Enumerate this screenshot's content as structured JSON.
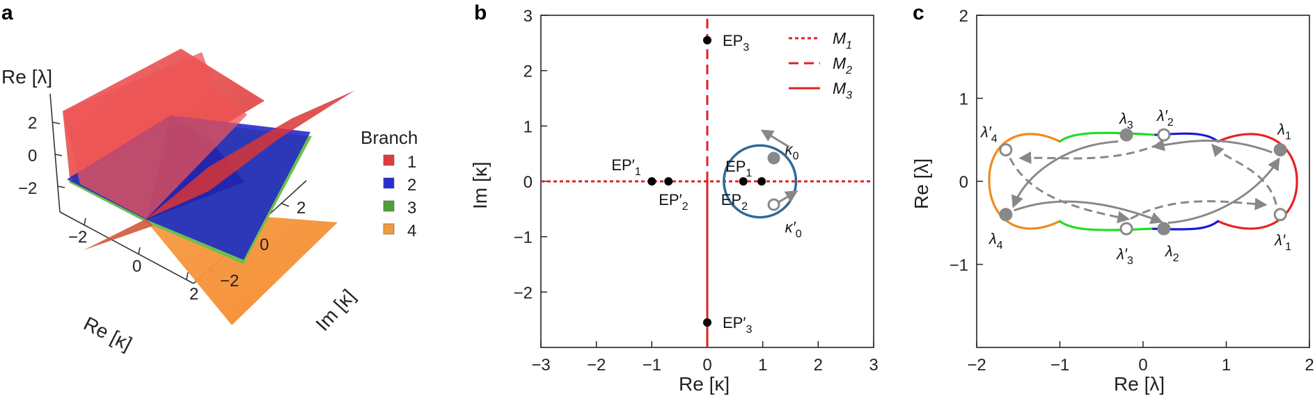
{
  "figure": {
    "panel_labels": [
      "a",
      "b",
      "c"
    ]
  },
  "chart_data": [
    {
      "panel": "a",
      "type": "surface",
      "axes": {
        "x": {
          "label": "Re [κ]",
          "ticks": [
            "−2",
            "0",
            "2"
          ],
          "range": [
            -3,
            3
          ]
        },
        "y": {
          "label": "Im [κ]",
          "ticks": [
            "−2",
            "0",
            "2"
          ],
          "range": [
            -3,
            3
          ]
        },
        "z": {
          "label": "Re [λ]",
          "ticks": [
            "2",
            "0",
            "−2"
          ],
          "range": [
            -3,
            3
          ]
        }
      },
      "legend": {
        "title": "Branch",
        "placement": "right",
        "entries": [
          {
            "label": "1",
            "color": "#e03a3a"
          },
          {
            "label": "2",
            "color": "#2b2bd6"
          },
          {
            "label": "3",
            "color": "#4f9e3a"
          },
          {
            "label": "4",
            "color": "#f39a3c"
          }
        ]
      },
      "series": [
        {
          "name": "1",
          "color": "#e8383f"
        },
        {
          "name": "2",
          "color": "#2424c8"
        },
        {
          "name": "3",
          "color": "#6cc04a"
        },
        {
          "name": "4",
          "color": "#f89a3c"
        }
      ]
    },
    {
      "panel": "b",
      "type": "scatter",
      "xlabel": "Re [κ]",
      "ylabel": "Im [κ]",
      "xlim": [
        -3,
        3
      ],
      "ylim": [
        -3,
        3
      ],
      "xticks": [
        -3,
        -2,
        -1,
        0,
        1,
        2,
        3
      ],
      "yticks": [
        -2,
        -1,
        0,
        1,
        2,
        3
      ],
      "xtick_labels": [
        "−3",
        "−2",
        "−1",
        "0",
        "1",
        "2",
        "3"
      ],
      "ytick_labels": [
        "−2",
        "−1",
        "0",
        "1",
        "2",
        "3"
      ],
      "grid": false,
      "legend": {
        "placement": "top-right",
        "entries": [
          {
            "label": "M",
            "sub": "1",
            "style": "dotted",
            "color": "#e02020"
          },
          {
            "label": "M",
            "sub": "2",
            "style": "dashed",
            "color": "#e02020"
          },
          {
            "label": "M",
            "sub": "3",
            "style": "solid",
            "color": "#e02020"
          }
        ]
      },
      "lines": [
        {
          "name": "M1",
          "orientation": "horizontal",
          "at": 0,
          "style": "dotted",
          "color": "#e02020"
        },
        {
          "name": "M2",
          "orientation": "vertical",
          "at": 0,
          "style": "dashed",
          "color": "#e02020",
          "range": [
            0,
            3
          ]
        },
        {
          "name": "M3",
          "orientation": "vertical",
          "at": 0,
          "style": "solid",
          "color": "#e02020",
          "range": [
            -3,
            0
          ]
        }
      ],
      "circle": {
        "center": [
          0.95,
          0
        ],
        "radius": 0.65,
        "color": "#2e6a99"
      },
      "points": [
        {
          "label": "EP",
          "sub": "3",
          "prime": false,
          "x": 0,
          "y": 2.55
        },
        {
          "label": "EP",
          "sub": "3",
          "prime": true,
          "x": 0,
          "y": -2.55
        },
        {
          "label": "EP",
          "sub": "1",
          "prime": true,
          "x": -1.0,
          "y": 0
        },
        {
          "label": "EP",
          "sub": "2",
          "prime": true,
          "x": -0.7,
          "y": 0
        },
        {
          "label": "EP",
          "sub": "2",
          "prime": false,
          "x": 0.65,
          "y": 0
        },
        {
          "label": "EP",
          "sub": "1",
          "prime": false,
          "x": 0.98,
          "y": 0
        }
      ],
      "markers": [
        {
          "label": "κ",
          "sub": "0",
          "prime": false,
          "x": 1.2,
          "y": 0.42,
          "style": "filled-gray"
        },
        {
          "label": "κ",
          "sub": "0",
          "prime": true,
          "x": 1.2,
          "y": -0.42,
          "style": "open-gray"
        }
      ]
    },
    {
      "panel": "c",
      "type": "line",
      "xlabel": "Re [λ]",
      "ylabel": "Re [λ]",
      "xlim": [
        -2,
        2
      ],
      "ylim": [
        -2,
        2
      ],
      "xticks": [
        -2,
        -1,
        0,
        1,
        2
      ],
      "yticks": [
        -1,
        0,
        1,
        2
      ],
      "xtick_labels": [
        "−2",
        "−1",
        "0",
        "1",
        "2"
      ],
      "ytick_labels": [
        "−1",
        "0",
        "1",
        "2"
      ],
      "grid": false,
      "colors": {
        "orange": "#f08a1c",
        "green": "#22dd22",
        "blue": "#1a1ad8",
        "red": "#e82020",
        "arrow": "#888888"
      },
      "points": [
        {
          "label": "λ",
          "sub": "1",
          "prime": false,
          "x": 1.65,
          "y": 0.38,
          "style": "filled"
        },
        {
          "label": "λ",
          "sub": "2",
          "prime": false,
          "x": 0.25,
          "y": -0.57,
          "style": "filled"
        },
        {
          "label": "λ",
          "sub": "3",
          "prime": false,
          "x": -0.2,
          "y": 0.56,
          "style": "filled"
        },
        {
          "label": "λ",
          "sub": "4",
          "prime": false,
          "x": -1.65,
          "y": -0.4,
          "style": "filled"
        },
        {
          "label": "λ",
          "sub": "1",
          "prime": true,
          "x": 1.65,
          "y": -0.4,
          "style": "open"
        },
        {
          "label": "λ",
          "sub": "2",
          "prime": true,
          "x": 0.25,
          "y": 0.56,
          "style": "open"
        },
        {
          "label": "λ",
          "sub": "3",
          "prime": true,
          "x": -0.2,
          "y": -0.57,
          "style": "open"
        },
        {
          "label": "λ",
          "sub": "4",
          "prime": true,
          "x": -1.65,
          "y": 0.38,
          "style": "open"
        }
      ]
    }
  ]
}
